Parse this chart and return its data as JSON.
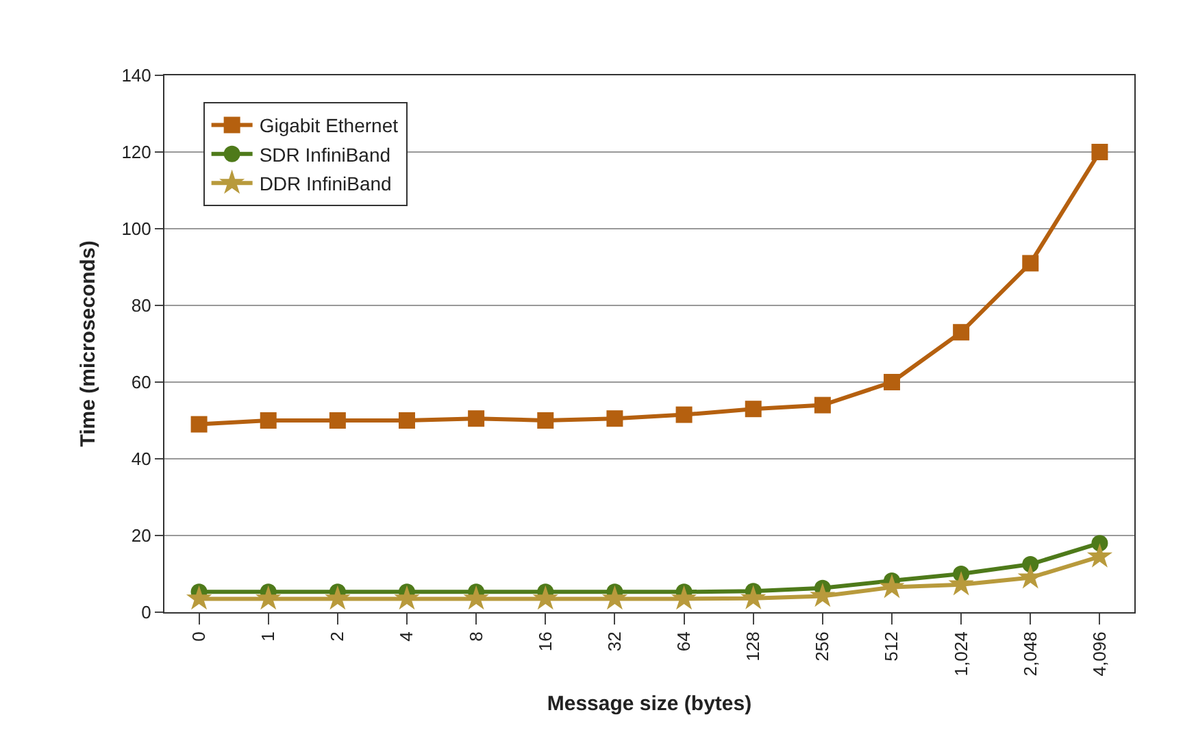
{
  "chart_data": {
    "type": "line",
    "xlabel": "Message size (bytes)",
    "ylabel": "Time (microseconds)",
    "categories": [
      "0",
      "1",
      "2",
      "4",
      "8",
      "16",
      "32",
      "64",
      "128",
      "256",
      "512",
      "1,024",
      "2,048",
      "4,096"
    ],
    "series": [
      {
        "name": "Gigabit Ethernet",
        "color": "#b5600f",
        "marker": "square",
        "values": [
          49,
          50,
          50,
          50,
          50.5,
          50,
          50.5,
          51.5,
          53,
          54,
          60,
          73,
          91,
          120
        ]
      },
      {
        "name": "SDR InfiniBand",
        "color": "#4e7a1a",
        "marker": "circle",
        "values": [
          5.3,
          5.3,
          5.3,
          5.3,
          5.3,
          5.3,
          5.3,
          5.3,
          5.5,
          6.3,
          8.2,
          10,
          12.5,
          18
        ]
      },
      {
        "name": "DDR InfiniBand",
        "color": "#b89a3c",
        "marker": "star",
        "values": [
          3.5,
          3.5,
          3.5,
          3.5,
          3.5,
          3.5,
          3.5,
          3.5,
          3.6,
          4.2,
          6.5,
          7.2,
          9,
          14.5
        ]
      }
    ],
    "ylim": [
      0,
      140
    ],
    "yticks": [
      0,
      20,
      40,
      60,
      80,
      100,
      120,
      140
    ],
    "grid": "y",
    "legend": "top left",
    "line_style": "solid"
  }
}
